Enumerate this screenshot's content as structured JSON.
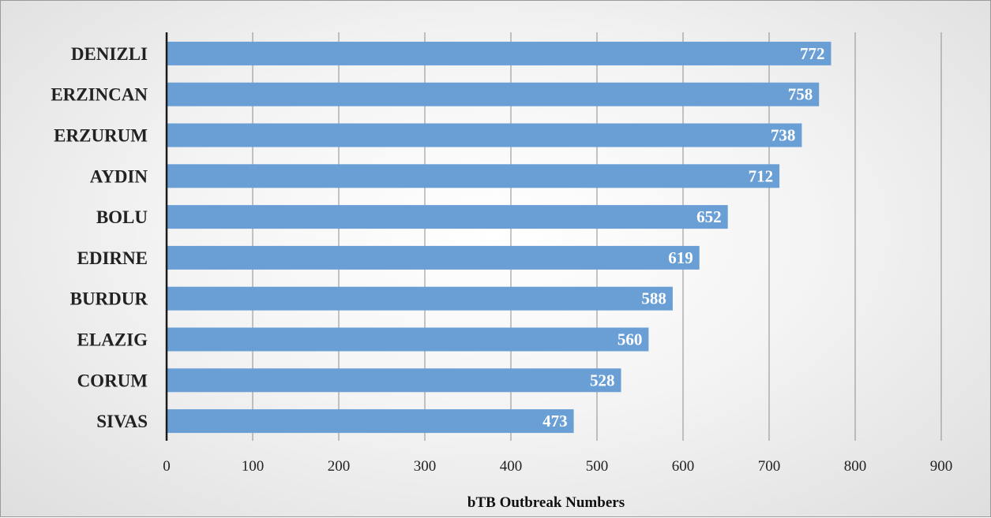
{
  "chart_data": {
    "type": "bar",
    "orientation": "horizontal",
    "categories": [
      "DENIZLI",
      "ERZINCAN",
      "ERZURUM",
      "AYDIN",
      "BOLU",
      "EDIRNE",
      "BURDUR",
      "ELAZIG",
      "CORUM",
      "SIVAS"
    ],
    "values": [
      772,
      758,
      738,
      712,
      652,
      619,
      588,
      560,
      528,
      473
    ],
    "title": "",
    "xlabel": "bTB Outbreak Numbers",
    "ylabel": "",
    "xlim": [
      0,
      900
    ],
    "xticks": [
      0,
      100,
      200,
      300,
      400,
      500,
      600,
      700,
      800,
      900
    ],
    "grid": "vertical",
    "data_labels": true,
    "bar_color": "#6a9fd6",
    "legend": "none"
  }
}
